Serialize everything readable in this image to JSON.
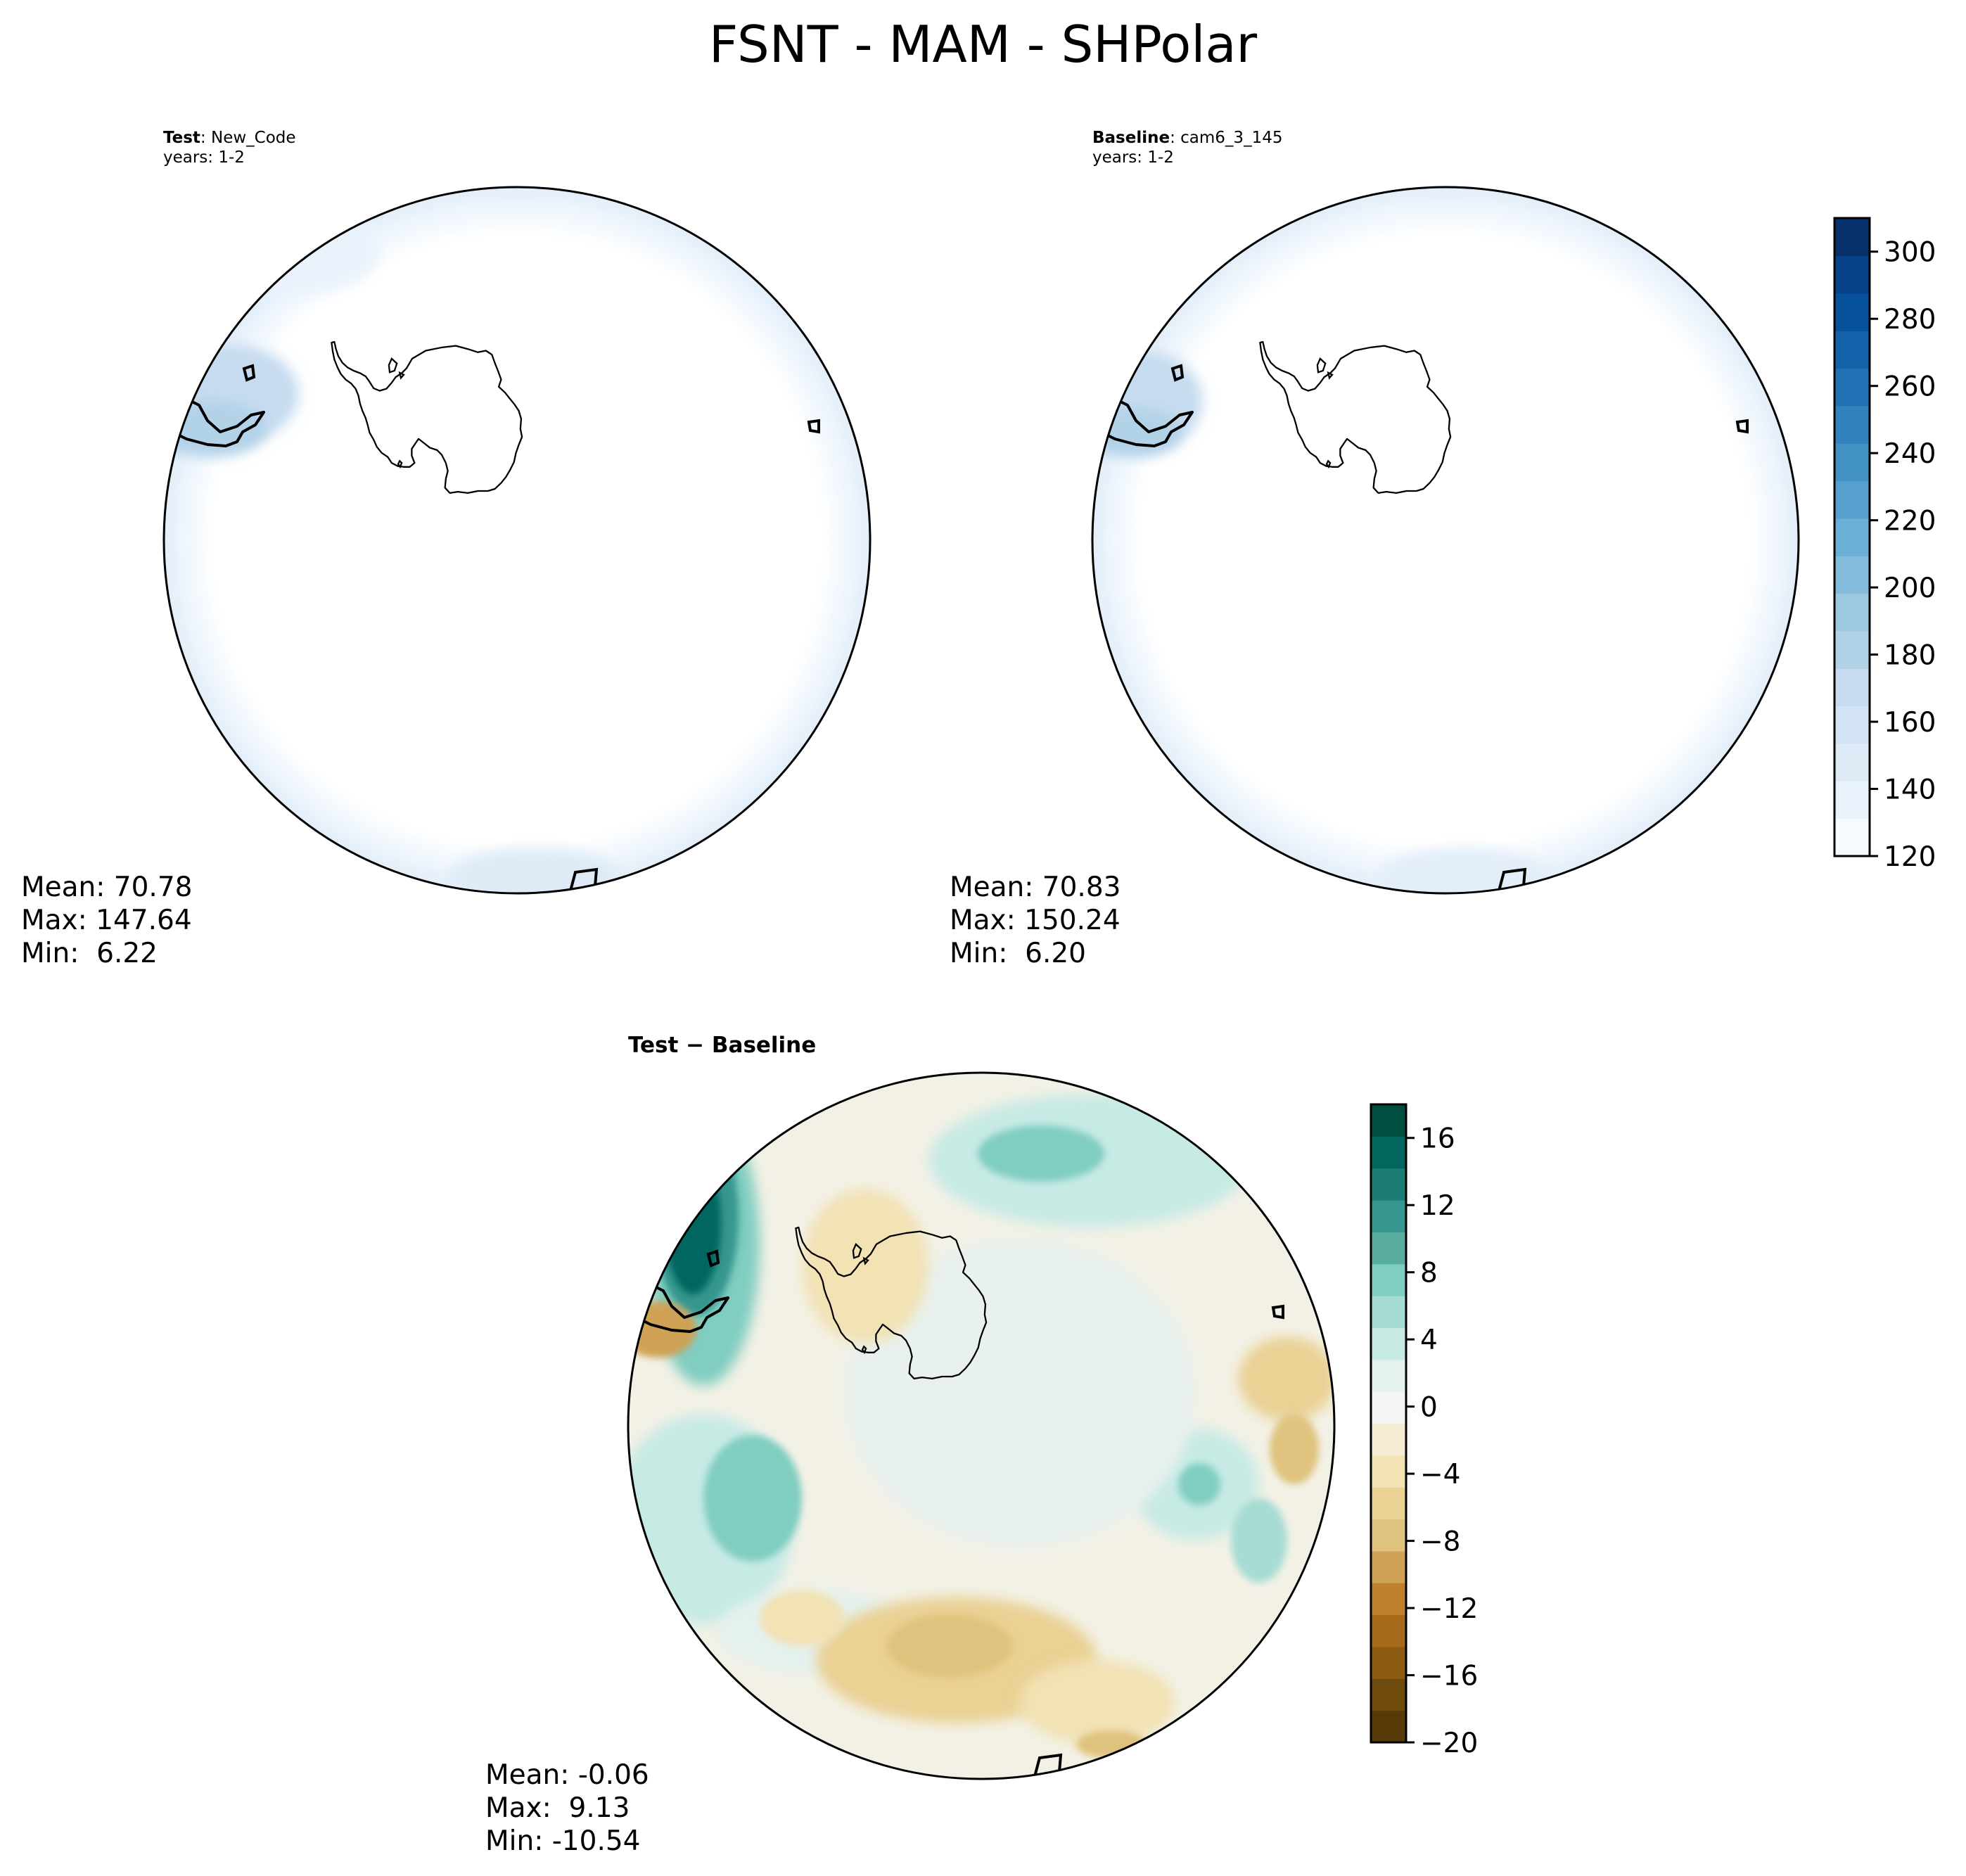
{
  "figure": {
    "title": "FSNT - MAM - SHPolar"
  },
  "panels": {
    "test": {
      "label_bold": "Test",
      "label_sep": ":",
      "label_value": "New_Code",
      "years": "years: 1-2",
      "stats": {
        "mean": "Mean: 70.78",
        "max": "Max: 147.64",
        "min": "Min:  6.22"
      }
    },
    "baseline": {
      "label_bold": "Baseline",
      "label_sep": ":",
      "label_value": "cam6_3_145",
      "years": "years: 1-2",
      "stats": {
        "mean": "Mean: 70.83",
        "max": "Max: 150.24",
        "min": "Min:  6.20"
      }
    },
    "diff": {
      "title_left": "Test",
      "title_op": "−",
      "title_right": "Baseline",
      "stats": {
        "mean": "Mean: -0.06",
        "max": "Max:  9.13",
        "min": "Min: -10.54"
      }
    }
  },
  "chart_data": [
    {
      "type": "heatmap",
      "panel": "test",
      "projection": "south-polar-stereographic",
      "colormap": "Blues",
      "zlim": [
        120,
        310
      ],
      "colorbar_ticks": [
        "120",
        "140",
        "160",
        "180",
        "200",
        "220",
        "240",
        "260",
        "280",
        "300"
      ],
      "mean": 70.78,
      "max": 147.64,
      "min": 6.22
    },
    {
      "type": "heatmap",
      "panel": "baseline",
      "projection": "south-polar-stereographic",
      "colormap": "Blues",
      "zlim": [
        120,
        310
      ],
      "colorbar_ticks": [
        "120",
        "140",
        "160",
        "180",
        "200",
        "220",
        "240",
        "260",
        "280",
        "300"
      ],
      "mean": 70.83,
      "max": 150.24,
      "min": 6.2
    },
    {
      "type": "heatmap",
      "panel": "diff",
      "projection": "south-polar-stereographic",
      "colormap": "BrBG",
      "zlim": [
        -20,
        18
      ],
      "colorbar_ticks": [
        "−20",
        "−16",
        "−12",
        "−8",
        "−4",
        "0",
        "4",
        "8",
        "12",
        "16"
      ],
      "mean": -0.06,
      "max": 9.13,
      "min": -10.54
    }
  ],
  "colors": {
    "blues": [
      "#f7fbff",
      "#eaf3fc",
      "#deebf7",
      "#d2e3f3",
      "#c6dbef",
      "#b2d2e8",
      "#9ecae1",
      "#84bcdb",
      "#6baed6",
      "#57a0ce",
      "#4292c6",
      "#3282be",
      "#2171b5",
      "#1361a9",
      "#08519c",
      "#08428a",
      "#08306b"
    ],
    "brbg": [
      "#583a08",
      "#6e4a0c",
      "#8c5a10",
      "#a66a1b",
      "#bf812d",
      "#cfa255",
      "#dfc27d",
      "#ead194",
      "#f2e2b4",
      "#f6ecd3",
      "#f5f5f5",
      "#e4f1ee",
      "#c7eae5",
      "#a6dcd3",
      "#80cdc1",
      "#5aae9f",
      "#35978f",
      "#1c7d75",
      "#01665e",
      "#014d40"
    ]
  }
}
